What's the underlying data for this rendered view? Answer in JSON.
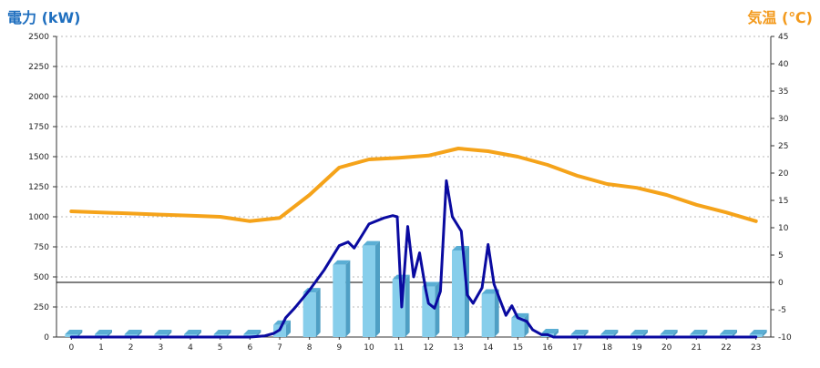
{
  "chart_data": {
    "type": "bar",
    "left_axis_label": "電力 (kW)",
    "right_axis_label": "気温 (℃)",
    "left_ylim": [
      0,
      2500
    ],
    "left_ticks": [
      0,
      250,
      500,
      750,
      1000,
      1250,
      1500,
      1750,
      2000,
      2250,
      2500
    ],
    "right_ylim": [
      -10,
      45
    ],
    "right_ticks": [
      -10,
      -5,
      0,
      5,
      10,
      15,
      20,
      25,
      30,
      35,
      40,
      45
    ],
    "categories": [
      "0",
      "1",
      "2",
      "3",
      "4",
      "5",
      "6",
      "7",
      "8",
      "9",
      "10",
      "11",
      "12",
      "13",
      "14",
      "15",
      "16",
      "17",
      "18",
      "19",
      "20",
      "21",
      "22",
      "23"
    ],
    "grid": true,
    "zero_reference_line_temp": 0,
    "series": [
      {
        "kind": "bar",
        "axis": "left",
        "values": [
          0,
          0,
          0,
          0,
          0,
          0,
          0,
          100,
          370,
          600,
          760,
          480,
          420,
          720,
          360,
          160,
          30,
          0,
          0,
          0,
          0,
          0,
          0,
          0
        ],
        "color": "#87ceeb"
      },
      {
        "kind": "line",
        "axis": "right",
        "color": "#f5a31a",
        "x": [
          0,
          1,
          2,
          3,
          4,
          5,
          6,
          7,
          8,
          9,
          10,
          11,
          12,
          13,
          14,
          15,
          16,
          17,
          18,
          19,
          20,
          21,
          22,
          23
        ],
        "values": [
          13,
          12.8,
          12.6,
          12.4,
          12.2,
          12,
          11.2,
          11.8,
          16,
          21,
          22.5,
          22.8,
          23.2,
          24.5,
          24,
          23,
          21.5,
          19.5,
          18,
          17.3,
          16,
          14.2,
          12.8,
          11.2
        ]
      },
      {
        "kind": "line",
        "axis": "left",
        "color": "#0a0aa0",
        "x": [
          0,
          1,
          2,
          3,
          4,
          5,
          6,
          6.5,
          6.8,
          7,
          7.2,
          7.5,
          8,
          8.5,
          9,
          9.3,
          9.5,
          9.8,
          10,
          10.5,
          10.8,
          10.95,
          11.1,
          11.3,
          11.5,
          11.7,
          11.9,
          12,
          12.2,
          12.4,
          12.6,
          12.8,
          13.1,
          13.3,
          13.5,
          13.8,
          14,
          14.2,
          14.4,
          14.6,
          14.8,
          15,
          15.3,
          15.5,
          15.8,
          16,
          16.2,
          16.5,
          17,
          18,
          19,
          20,
          21,
          22,
          23
        ],
        "values": [
          0,
          0,
          0,
          0,
          0,
          0,
          0,
          10,
          30,
          60,
          160,
          240,
          390,
          560,
          760,
          790,
          740,
          860,
          940,
          990,
          1010,
          1000,
          250,
          920,
          500,
          700,
          400,
          280,
          240,
          380,
          1300,
          1000,
          880,
          350,
          280,
          410,
          770,
          440,
          310,
          180,
          260,
          160,
          130,
          60,
          20,
          20,
          0,
          0,
          0,
          0,
          0,
          0,
          0,
          0,
          0
        ]
      }
    ]
  }
}
